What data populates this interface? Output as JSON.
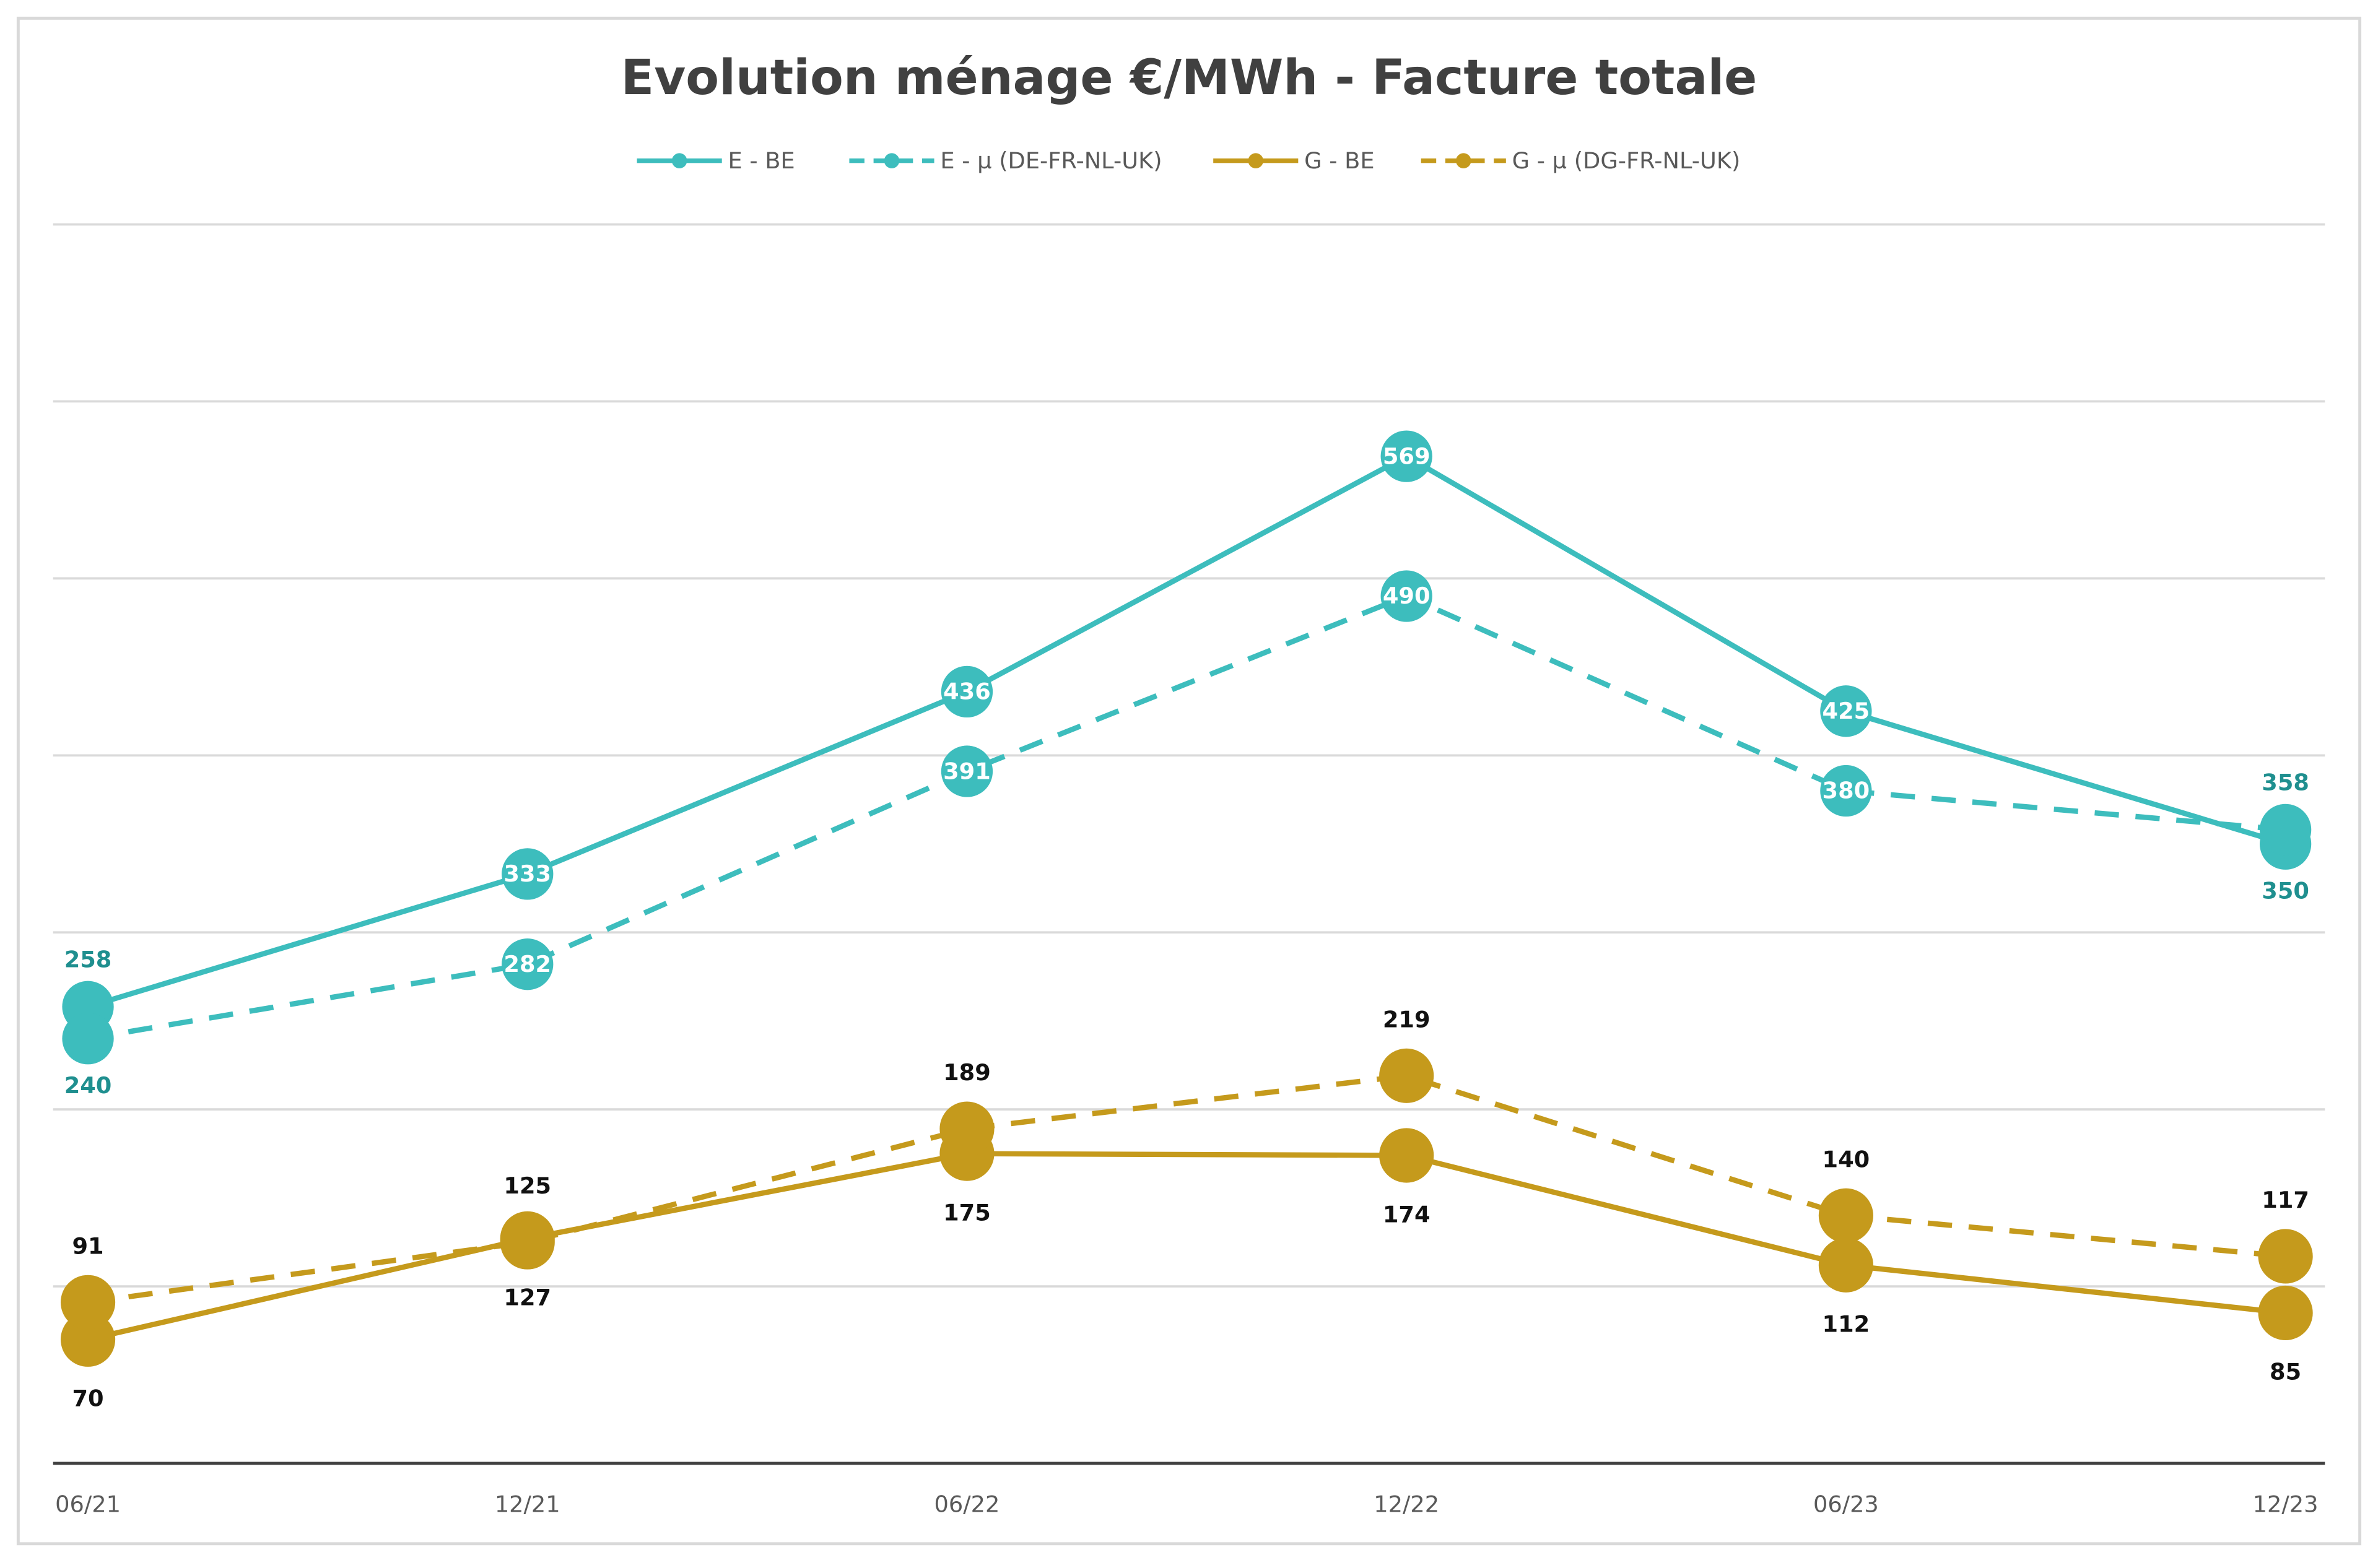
{
  "chart_data": {
    "type": "line",
    "title": "Evolution ménage €/MWh - Facture totale",
    "categories": [
      "06/21",
      "12/21",
      "06/22",
      "12/22",
      "06/23",
      "12/23"
    ],
    "ylim": [
      0,
      700
    ],
    "ytick_step": 100,
    "y_tick_labels_shown": false,
    "grid": true,
    "legend": "top",
    "series": [
      {
        "name": "E - BE",
        "values": [
          258,
          333,
          436,
          569,
          425,
          350
        ],
        "color": "#3dbdbd",
        "dashed": false,
        "label_pos": "inside"
      },
      {
        "name": "E - µ (DE-FR-NL-UK)",
        "values": [
          240,
          282,
          391,
          490,
          380,
          358
        ],
        "color": "#3dbdbd",
        "dashed": true,
        "label_pos": "inside"
      },
      {
        "name": "G - BE",
        "values": [
          70,
          127,
          175,
          174,
          112,
          85
        ],
        "color": "#c59a1c",
        "dashed": false,
        "label_pos": "below"
      },
      {
        "name": "G - µ (DG-FR-NL-UK)",
        "values": [
          91,
          125,
          189,
          219,
          140,
          117
        ],
        "color": "#c59a1c",
        "dashed": true,
        "label_pos": "above"
      }
    ]
  }
}
